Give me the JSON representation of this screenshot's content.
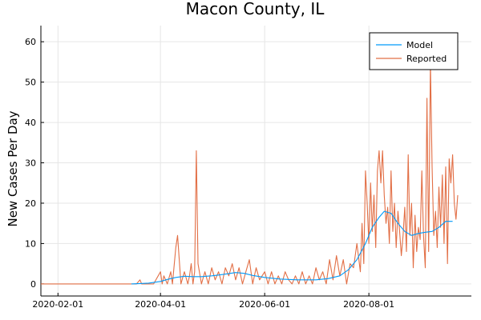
{
  "chart_data": {
    "type": "line",
    "title": "Macon County, IL",
    "xlabel": "",
    "ylabel": "New Cases Per Day",
    "x_ticks": [
      "2020-02-01",
      "2020-04-01",
      "2020-06-01",
      "2020-08-01"
    ],
    "y_ticks": [
      0,
      10,
      20,
      30,
      40,
      50,
      60
    ],
    "xlim": [
      "2020-01-22",
      "2020-09-30"
    ],
    "ylim": [
      -3,
      64
    ],
    "grid": true,
    "legend_position": "top-right",
    "colors": {
      "Model": "#009AFA",
      "Reported": "#E26F46"
    },
    "series": [
      {
        "name": "Model",
        "points": [
          [
            "2020-03-15",
            0
          ],
          [
            "2020-03-25",
            0.2
          ],
          [
            "2020-04-01",
            0.6
          ],
          [
            "2020-04-05",
            1.1
          ],
          [
            "2020-04-10",
            1.6
          ],
          [
            "2020-04-15",
            1.9
          ],
          [
            "2020-04-20",
            1.8
          ],
          [
            "2020-04-25",
            1.8
          ],
          [
            "2020-05-01",
            2.0
          ],
          [
            "2020-05-05",
            2.2
          ],
          [
            "2020-05-10",
            2.5
          ],
          [
            "2020-05-15",
            2.8
          ],
          [
            "2020-05-20",
            2.6
          ],
          [
            "2020-05-25",
            2.1
          ],
          [
            "2020-06-01",
            1.6
          ],
          [
            "2020-06-10",
            1.2
          ],
          [
            "2020-06-20",
            1.0
          ],
          [
            "2020-07-01",
            1.0
          ],
          [
            "2020-07-08",
            1.3
          ],
          [
            "2020-07-15",
            2.0
          ],
          [
            "2020-07-20",
            3.5
          ],
          [
            "2020-07-25",
            6.0
          ],
          [
            "2020-07-30",
            10.0
          ],
          [
            "2020-08-03",
            14.0
          ],
          [
            "2020-08-07",
            16.5
          ],
          [
            "2020-08-10",
            18.0
          ],
          [
            "2020-08-14",
            17.5
          ],
          [
            "2020-08-18",
            15.0
          ],
          [
            "2020-08-22",
            13.0
          ],
          [
            "2020-08-26",
            12.0
          ],
          [
            "2020-08-30",
            12.5
          ],
          [
            "2020-09-03",
            12.8
          ],
          [
            "2020-09-07",
            13.0
          ],
          [
            "2020-09-11",
            14.0
          ],
          [
            "2020-09-15",
            15.5
          ],
          [
            "2020-09-19",
            15.5
          ]
        ]
      },
      {
        "name": "Reported",
        "points": [
          [
            "2020-01-22",
            0
          ],
          [
            "2020-03-15",
            0
          ],
          [
            "2020-03-18",
            0
          ],
          [
            "2020-03-20",
            1
          ],
          [
            "2020-03-21",
            0
          ],
          [
            "2020-03-25",
            0
          ],
          [
            "2020-03-28",
            0
          ],
          [
            "2020-04-01",
            3
          ],
          [
            "2020-04-02",
            0
          ],
          [
            "2020-04-03",
            2
          ],
          [
            "2020-04-05",
            0
          ],
          [
            "2020-04-07",
            3
          ],
          [
            "2020-04-08",
            0
          ],
          [
            "2020-04-10",
            9
          ],
          [
            "2020-04-11",
            12
          ],
          [
            "2020-04-12",
            6
          ],
          [
            "2020-04-13",
            0
          ],
          [
            "2020-04-15",
            3
          ],
          [
            "2020-04-17",
            0
          ],
          [
            "2020-04-18",
            2
          ],
          [
            "2020-04-19",
            5
          ],
          [
            "2020-04-20",
            0
          ],
          [
            "2020-04-21",
            3
          ],
          [
            "2020-04-22",
            33
          ],
          [
            "2020-04-23",
            5
          ],
          [
            "2020-04-25",
            0
          ],
          [
            "2020-04-27",
            3
          ],
          [
            "2020-04-29",
            0
          ],
          [
            "2020-05-01",
            4
          ],
          [
            "2020-05-03",
            1
          ],
          [
            "2020-05-05",
            3
          ],
          [
            "2020-05-07",
            0
          ],
          [
            "2020-05-09",
            4
          ],
          [
            "2020-05-11",
            2
          ],
          [
            "2020-05-13",
            5
          ],
          [
            "2020-05-15",
            1
          ],
          [
            "2020-05-17",
            4
          ],
          [
            "2020-05-19",
            0
          ],
          [
            "2020-05-21",
            3
          ],
          [
            "2020-05-23",
            6
          ],
          [
            "2020-05-25",
            0
          ],
          [
            "2020-05-27",
            4
          ],
          [
            "2020-05-29",
            1
          ],
          [
            "2020-06-01",
            3
          ],
          [
            "2020-06-03",
            0
          ],
          [
            "2020-06-05",
            3
          ],
          [
            "2020-06-07",
            0
          ],
          [
            "2020-06-09",
            2
          ],
          [
            "2020-06-11",
            0
          ],
          [
            "2020-06-13",
            3
          ],
          [
            "2020-06-15",
            1
          ],
          [
            "2020-06-17",
            0
          ],
          [
            "2020-06-19",
            2
          ],
          [
            "2020-06-21",
            0
          ],
          [
            "2020-06-23",
            3
          ],
          [
            "2020-06-25",
            0
          ],
          [
            "2020-06-27",
            2
          ],
          [
            "2020-06-29",
            0
          ],
          [
            "2020-07-01",
            4
          ],
          [
            "2020-07-03",
            1
          ],
          [
            "2020-07-05",
            3
          ],
          [
            "2020-07-07",
            0
          ],
          [
            "2020-07-09",
            6
          ],
          [
            "2020-07-11",
            1
          ],
          [
            "2020-07-13",
            7
          ],
          [
            "2020-07-15",
            2
          ],
          [
            "2020-07-17",
            6
          ],
          [
            "2020-07-19",
            0
          ],
          [
            "2020-07-21",
            5
          ],
          [
            "2020-07-23",
            4
          ],
          [
            "2020-07-25",
            10
          ],
          [
            "2020-07-27",
            3
          ],
          [
            "2020-07-28",
            15
          ],
          [
            "2020-07-29",
            5
          ],
          [
            "2020-07-30",
            28
          ],
          [
            "2020-07-31",
            20
          ],
          [
            "2020-08-01",
            10
          ],
          [
            "2020-08-02",
            25
          ],
          [
            "2020-08-03",
            13
          ],
          [
            "2020-08-04",
            22
          ],
          [
            "2020-08-05",
            9
          ],
          [
            "2020-08-06",
            28
          ],
          [
            "2020-08-07",
            33
          ],
          [
            "2020-08-08",
            25
          ],
          [
            "2020-08-09",
            33
          ],
          [
            "2020-08-10",
            22
          ],
          [
            "2020-08-11",
            15
          ],
          [
            "2020-08-12",
            19
          ],
          [
            "2020-08-13",
            10
          ],
          [
            "2020-08-14",
            28
          ],
          [
            "2020-08-15",
            13
          ],
          [
            "2020-08-16",
            20
          ],
          [
            "2020-08-17",
            9
          ],
          [
            "2020-08-18",
            18
          ],
          [
            "2020-08-19",
            13
          ],
          [
            "2020-08-20",
            7
          ],
          [
            "2020-08-21",
            12
          ],
          [
            "2020-08-22",
            19
          ],
          [
            "2020-08-23",
            8
          ],
          [
            "2020-08-24",
            32
          ],
          [
            "2020-08-25",
            12
          ],
          [
            "2020-08-26",
            20
          ],
          [
            "2020-08-27",
            4
          ],
          [
            "2020-08-28",
            17
          ],
          [
            "2020-08-29",
            8
          ],
          [
            "2020-08-30",
            14
          ],
          [
            "2020-08-31",
            11
          ],
          [
            "2020-09-01",
            28
          ],
          [
            "2020-09-02",
            12
          ],
          [
            "2020-09-03",
            4
          ],
          [
            "2020-09-04",
            46
          ],
          [
            "2020-09-05",
            8
          ],
          [
            "2020-09-06",
            55
          ],
          [
            "2020-09-07",
            29
          ],
          [
            "2020-09-08",
            12
          ],
          [
            "2020-09-09",
            18
          ],
          [
            "2020-09-10",
            9
          ],
          [
            "2020-09-11",
            24
          ],
          [
            "2020-09-12",
            14
          ],
          [
            "2020-09-13",
            27
          ],
          [
            "2020-09-14",
            10
          ],
          [
            "2020-09-15",
            29
          ],
          [
            "2020-09-16",
            5
          ],
          [
            "2020-09-17",
            31
          ],
          [
            "2020-09-18",
            25
          ],
          [
            "2020-09-19",
            32
          ],
          [
            "2020-09-20",
            20
          ],
          [
            "2020-09-21",
            16
          ],
          [
            "2020-09-22",
            22
          ]
        ]
      }
    ]
  }
}
